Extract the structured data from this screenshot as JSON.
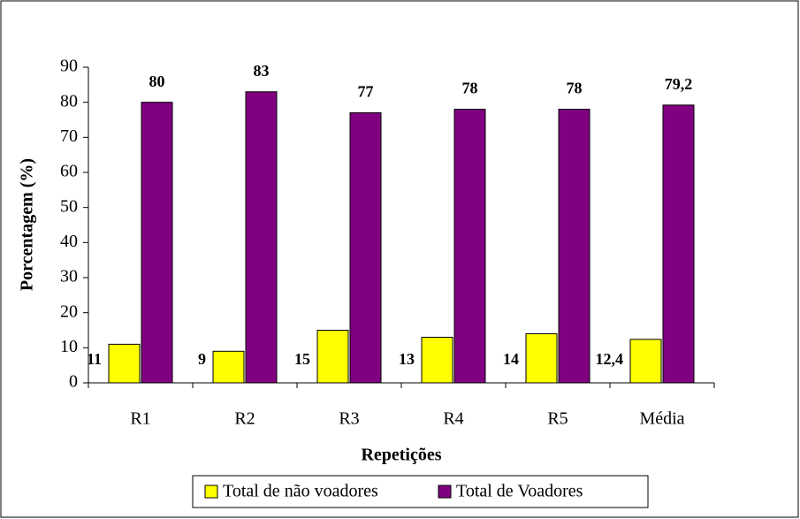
{
  "chart_data": {
    "type": "bar",
    "categories": [
      "R1",
      "R2",
      "R3",
      "R4",
      "R5",
      "Média"
    ],
    "series": [
      {
        "name": "Total de não voadores",
        "color": "#ffff00",
        "values": [
          11,
          9,
          15,
          13,
          14,
          12.4
        ],
        "value_labels": [
          "11",
          "9",
          "15",
          "13",
          "14",
          "12,4"
        ]
      },
      {
        "name": "Total de Voadores",
        "color": "#800080",
        "values": [
          80,
          83,
          77,
          78,
          78,
          79.2
        ],
        "value_labels": [
          "80",
          "83",
          "77",
          "78",
          "78",
          "79,2"
        ]
      }
    ],
    "ylabel": "Porcentagem (%)",
    "xlabel": "Repetições",
    "ylim": [
      0,
      90
    ],
    "yticks": [
      0,
      10,
      20,
      30,
      40,
      50,
      60,
      70,
      80,
      90
    ],
    "legend": "bottom"
  }
}
